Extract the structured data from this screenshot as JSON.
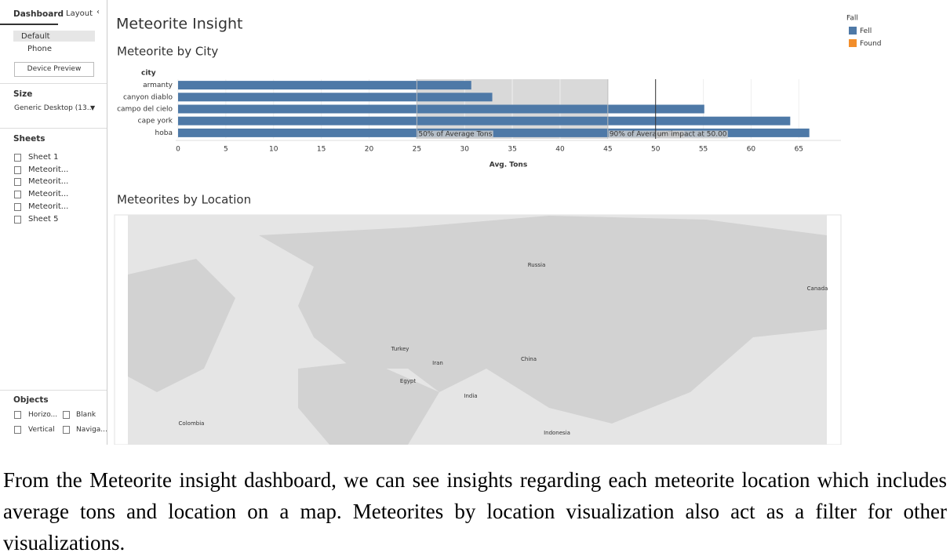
{
  "sidebar": {
    "tabs": [
      "Dashboard",
      "Layout"
    ],
    "device_options": [
      "Default",
      "Phone"
    ],
    "device_preview": "Device Preview",
    "size_title": "Size",
    "size_value": "Generic Desktop (13...",
    "sheets_title": "Sheets",
    "sheets": [
      "Sheet 1",
      "Meteorit...",
      "Meteorit...",
      "Meteorit...",
      "Meteorit...",
      "Sheet 5"
    ],
    "objects_title": "Objects",
    "objects": [
      "Horizo...",
      "Blank",
      "Vertical",
      "Naviga..."
    ]
  },
  "dashboard": {
    "title": "Meteorite Insight",
    "legend": {
      "title": "Fall",
      "items": [
        {
          "name": "Fell",
          "color": "#4e79a7"
        },
        {
          "name": "Found",
          "color": "#f28e2b"
        }
      ]
    },
    "map_title": "Meteorites by Location",
    "map_labels": [
      "Russia",
      "Canada",
      "China",
      "Turkey",
      "Iran",
      "Egypt",
      "India",
      "Indonesia",
      "Colombia"
    ]
  },
  "chart_data": {
    "type": "bar",
    "title": "Meteorite by City",
    "y_label": "city",
    "x_label": "Avg. Tons",
    "categories": [
      "armanty",
      "canyon diablo",
      "campo del cielo",
      "cape york",
      "hoba"
    ],
    "values": [
      30.7,
      32.9,
      55.1,
      64.1,
      66.1
    ],
    "color": "#4e79a7",
    "xlim": [
      0,
      69
    ],
    "xticks": [
      0,
      5,
      10,
      15,
      20,
      25,
      30,
      35,
      40,
      45,
      50,
      55,
      60,
      65
    ],
    "grid": true,
    "reference_lines": [
      {
        "value": 25,
        "label": "50% of Average Tons"
      },
      {
        "value": 45,
        "label": "90% of Average Tons"
      },
      {
        "value": 50,
        "label": "um impact at 50.00"
      }
    ]
  },
  "caption": "From the Meteorite insight dashboard, we can see insights regarding each meteorite location which includes average tons and location on a map. Meteorites by location visualization also act as a filter for other visualizations."
}
